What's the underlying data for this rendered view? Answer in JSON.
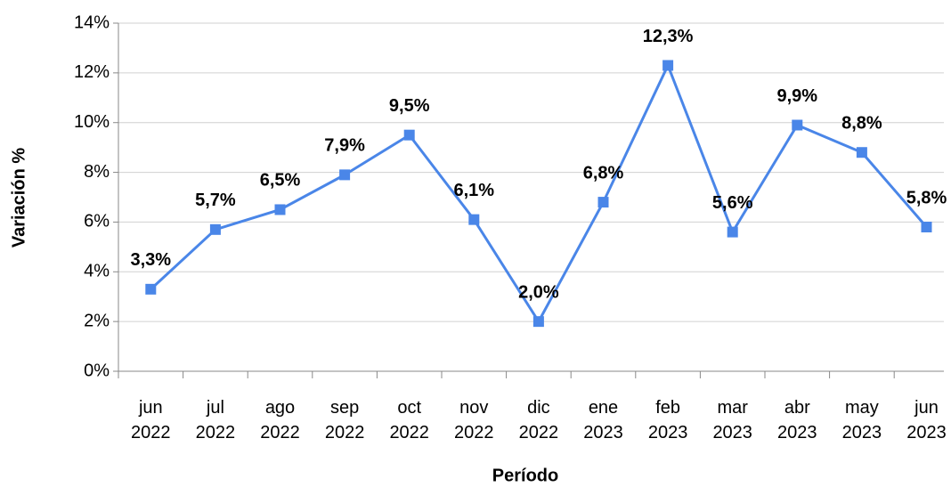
{
  "chart_data": {
    "type": "line",
    "xlabel": "Período",
    "ylabel": "Variación %",
    "categories": [
      "jun 2022",
      "jul 2022",
      "ago 2022",
      "sep 2022",
      "oct 2022",
      "nov 2022",
      "dic 2022",
      "ene 2023",
      "feb 2023",
      "mar 2023",
      "abr 2023",
      "may 2023",
      "jun 2023"
    ],
    "series": [
      {
        "name": "Variación %",
        "color": "#4a86e8",
        "values": [
          3.3,
          5.7,
          6.5,
          7.9,
          9.5,
          6.1,
          2.0,
          6.8,
          12.3,
          5.6,
          9.9,
          8.8,
          5.8
        ],
        "value_labels": [
          "3,3%",
          "5,7%",
          "6,5%",
          "7,9%",
          "9,5%",
          "6,1%",
          "2,0%",
          "6,8%",
          "12,3%",
          "5,6%",
          "9,9%",
          "8,8%",
          "5,8%"
        ]
      }
    ],
    "ylim": [
      0,
      14
    ],
    "yticks": [
      {
        "value": 0,
        "label": "0%"
      },
      {
        "value": 2,
        "label": "2%"
      },
      {
        "value": 4,
        "label": "4%"
      },
      {
        "value": 6,
        "label": "6%"
      },
      {
        "value": 8,
        "label": "8%"
      },
      {
        "value": 10,
        "label": "10%"
      },
      {
        "value": 12,
        "label": "12%"
      },
      {
        "value": 14,
        "label": "14%"
      }
    ],
    "grid": true
  }
}
